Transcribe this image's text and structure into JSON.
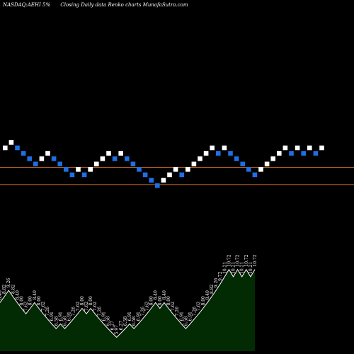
{
  "header": {
    "symbol": "NASDAQ:AEHI",
    "pct": "5%",
    "desc": "Closing Daily data  Renko  charts MunafaSutra.com"
  },
  "colors": {
    "background": "#000000",
    "up_brick": "#ffffff",
    "down_brick": "#1e6fe6",
    "level_line": "#b05a1e",
    "volume_fill": "#032b03",
    "volume_edge": "#ffffff"
  },
  "chart_data": [
    {
      "type": "renko",
      "brick_size_label": "5%",
      "levels": [
        7,
        4
      ],
      "bricks": [
        {
          "dir": "up",
          "level": 11
        },
        {
          "dir": "up",
          "level": 12
        },
        {
          "dir": "down",
          "level": 11
        },
        {
          "dir": "down",
          "level": 10
        },
        {
          "dir": "down",
          "level": 9
        },
        {
          "dir": "down",
          "level": 8
        },
        {
          "dir": "up",
          "level": 9
        },
        {
          "dir": "up",
          "level": 10
        },
        {
          "dir": "down",
          "level": 9
        },
        {
          "dir": "down",
          "level": 8
        },
        {
          "dir": "down",
          "level": 7
        },
        {
          "dir": "down",
          "level": 6
        },
        {
          "dir": "up",
          "level": 7
        },
        {
          "dir": "down",
          "level": 6
        },
        {
          "dir": "up",
          "level": 7
        },
        {
          "dir": "up",
          "level": 8
        },
        {
          "dir": "up",
          "level": 9
        },
        {
          "dir": "up",
          "level": 10
        },
        {
          "dir": "down",
          "level": 9
        },
        {
          "dir": "up",
          "level": 10
        },
        {
          "dir": "down",
          "level": 9
        },
        {
          "dir": "down",
          "level": 8
        },
        {
          "dir": "down",
          "level": 7
        },
        {
          "dir": "down",
          "level": 6
        },
        {
          "dir": "down",
          "level": 5
        },
        {
          "dir": "down",
          "level": 4
        },
        {
          "dir": "up",
          "level": 5
        },
        {
          "dir": "up",
          "level": 6
        },
        {
          "dir": "up",
          "level": 7
        },
        {
          "dir": "down",
          "level": 6
        },
        {
          "dir": "up",
          "level": 7
        },
        {
          "dir": "up",
          "level": 8
        },
        {
          "dir": "up",
          "level": 9
        },
        {
          "dir": "up",
          "level": 10
        },
        {
          "dir": "up",
          "level": 11
        },
        {
          "dir": "down",
          "level": 10
        },
        {
          "dir": "up",
          "level": 11
        },
        {
          "dir": "down",
          "level": 10
        },
        {
          "dir": "down",
          "level": 9
        },
        {
          "dir": "down",
          "level": 8
        },
        {
          "dir": "down",
          "level": 7
        },
        {
          "dir": "down",
          "level": 6
        },
        {
          "dir": "up",
          "level": 7
        },
        {
          "dir": "up",
          "level": 8
        },
        {
          "dir": "up",
          "level": 9
        },
        {
          "dir": "up",
          "level": 10
        },
        {
          "dir": "up",
          "level": 11
        },
        {
          "dir": "down",
          "level": 10
        },
        {
          "dir": "up",
          "level": 11
        },
        {
          "dir": "down",
          "level": 10
        },
        {
          "dir": "up",
          "level": 11
        },
        {
          "dir": "down",
          "level": 10
        },
        {
          "dir": "up",
          "level": 11
        }
      ]
    },
    {
      "type": "area",
      "labels": [
        "8.40",
        "8.82",
        "9.26",
        "8.82",
        "8.40",
        "8.00",
        "7.62",
        "8.00",
        "8.40",
        "8.00",
        "7.62",
        "7.26",
        "6.91",
        "6.58",
        "6.91",
        "6.58",
        "6.91",
        "7.26",
        "7.62",
        "8.00",
        "7.62",
        "8.00",
        "7.62",
        "7.26",
        "6.91",
        "6.58",
        "6.27",
        "5.97",
        "6.27",
        "6.58",
        "6.91",
        "6.58",
        "6.91",
        "7.26",
        "7.62",
        "8.00",
        "8.40",
        "8.00",
        "8.40",
        "8.00",
        "7.62",
        "7.26",
        "6.91",
        "6.58",
        "6.91",
        "7.26",
        "7.62",
        "8.00",
        "8.40",
        "8.82",
        "9.26",
        "9.72",
        "10.21",
        "10.72",
        "10.21",
        "10.72",
        "10.21",
        "10.72",
        "10.21",
        "10.72"
      ],
      "values": [
        8.4,
        8.82,
        9.26,
        8.82,
        8.4,
        8.0,
        7.62,
        8.0,
        8.4,
        8.0,
        7.62,
        7.26,
        6.91,
        6.58,
        6.91,
        6.58,
        6.91,
        7.26,
        7.62,
        8.0,
        7.62,
        8.0,
        7.62,
        7.26,
        6.91,
        6.58,
        6.27,
        5.97,
        6.27,
        6.58,
        6.91,
        6.58,
        6.91,
        7.26,
        7.62,
        8.0,
        8.4,
        8.0,
        8.4,
        8.0,
        7.62,
        7.26,
        6.91,
        6.58,
        6.91,
        7.26,
        7.62,
        8.0,
        8.4,
        8.82,
        9.26,
        9.72,
        10.21,
        10.72,
        10.21,
        10.72,
        10.21,
        10.72,
        10.21,
        10.72
      ]
    }
  ]
}
